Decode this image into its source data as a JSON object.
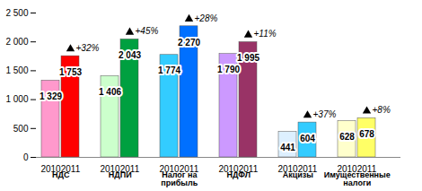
{
  "chart_data": {
    "type": "bar",
    "categories": [
      "НДС",
      "НДПИ",
      "Налог на прибыль",
      "НДФЛ",
      "Акцизы",
      "Имущественные налоги"
    ],
    "series": [
      {
        "name": "2010",
        "values": [
          1329,
          1406,
          1774,
          1790,
          441,
          628
        ],
        "value_labels": [
          "1 329",
          "1 406",
          "1 774",
          "1 790",
          "441",
          "628"
        ],
        "colors": [
          "#ff99cc",
          "#ccffcc",
          "#33ccff",
          "#cc99ff",
          "#ddf0ff",
          "#ffffcc"
        ]
      },
      {
        "name": "2011",
        "values": [
          1753,
          2043,
          2270,
          1995,
          604,
          678
        ],
        "value_labels": [
          "1 753",
          "2 043",
          "2 270",
          "1 995",
          "604",
          "678"
        ],
        "colors": [
          "#ff0000",
          "#00a040",
          "#0070ff",
          "#993366",
          "#33ccff",
          "#ffff66"
        ]
      }
    ],
    "annotations": [
      "+32%",
      "+45%",
      "+28%",
      "+11%",
      "+37%",
      "+8%"
    ],
    "ylim": [
      0,
      2500
    ],
    "yticks": [
      0,
      500,
      {
        "value": 1000,
        "label": "1 000"
      },
      {
        "value": 1500,
        "label": "1 500"
      },
      {
        "value": 2000,
        "label": "2 000"
      },
      {
        "value": 2500,
        "label": "2 500"
      }
    ],
    "grid": false,
    "data_labels": true
  }
}
